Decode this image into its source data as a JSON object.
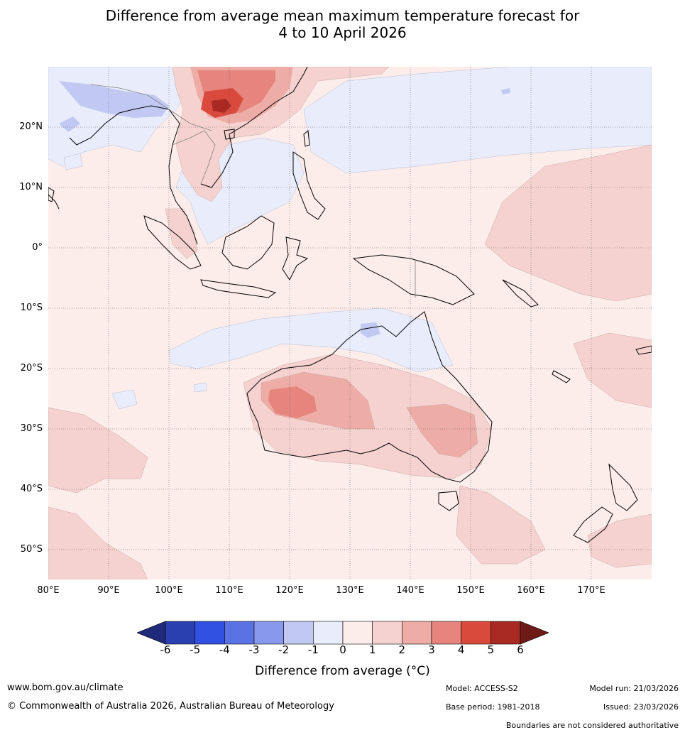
{
  "title": {
    "line1": "Difference from average mean maximum temperature forecast for",
    "line2": "4 to 10 April 2026"
  },
  "map": {
    "lat_labels": [
      "20°N",
      "10°N",
      "0°",
      "10°S",
      "20°S",
      "30°S",
      "40°S",
      "50°S"
    ],
    "lon_labels": [
      "80°E",
      "90°E",
      "100°E",
      "110°E",
      "120°E",
      "130°E",
      "140°E",
      "150°E",
      "160°E",
      "170°E"
    ],
    "colors": {
      "plus_0_1": "#fcecea",
      "plus_1_2": "#f5d2cf",
      "plus_2_3": "#edaca6",
      "plus_3_4": "#e5857d",
      "plus_4_5": "#d94a3d",
      "plus_5_6": "#a82a22",
      "minus_0_1": "#e8ecfb",
      "minus_1_2": "#c1c9f3",
      "coast": "#000000",
      "border": "#808080"
    }
  },
  "colorbar": {
    "ticks": [
      "-6",
      "-5",
      "-4",
      "-3",
      "-2",
      "-1",
      "0",
      "1",
      "2",
      "3",
      "4",
      "5",
      "6"
    ],
    "colors": [
      "#1f2b7a",
      "#2a3fb0",
      "#2f50e0",
      "#5a72e4",
      "#8898ec",
      "#c1c9f3",
      "#e8ecfb",
      "#fcecea",
      "#f5d2cf",
      "#edaca6",
      "#e5857d",
      "#d94a3d",
      "#a82a22",
      "#6e1a17"
    ],
    "label": "Difference from average (°C)"
  },
  "footer": {
    "website": "www.bom.gov.au/climate",
    "copyright": "© Commonwealth of Australia 2026, Australian Bureau of Meteorology",
    "model": "Model: ACCESS-S2",
    "base_period": "Base period: 1981-2018",
    "model_run": "Model run: 21/03/2026",
    "issued": "Issued: 23/03/2026",
    "disclaimer": "Boundaries are not considered authoritative"
  }
}
